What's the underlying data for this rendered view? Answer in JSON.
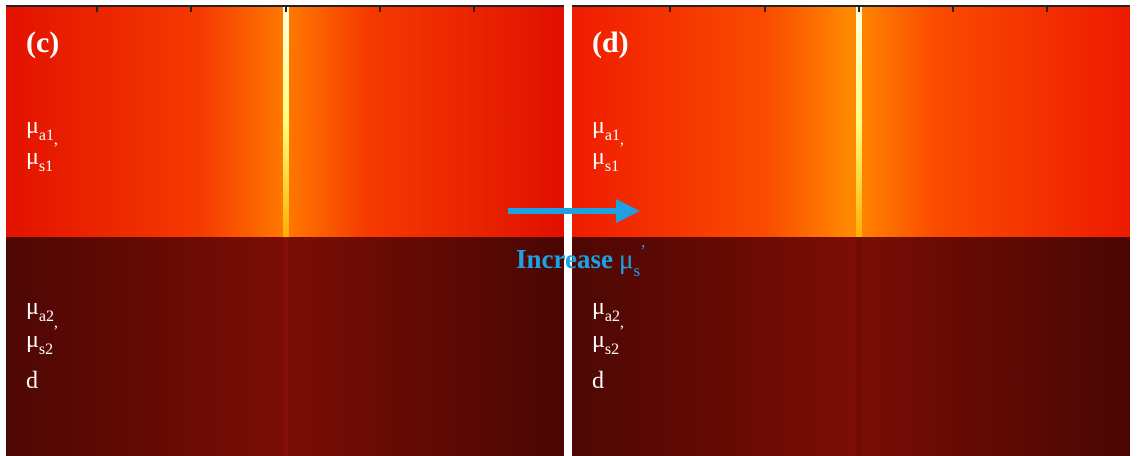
{
  "panels": [
    {
      "label": "(c)",
      "upper_layer": [
        {
          "symbol": "μ",
          "subscript": "a1"
        },
        {
          "symbol": "μ",
          "subscript": "s1",
          "suffix": "’"
        }
      ],
      "lower_layer": [
        {
          "symbol": "μ",
          "subscript": "a2"
        },
        {
          "symbol": "μ",
          "subscript": "s2",
          "suffix": "’"
        },
        {
          "symbol": "d"
        }
      ]
    },
    {
      "label": "(d)",
      "upper_layer": [
        {
          "symbol": "μ",
          "subscript": "a1"
        },
        {
          "symbol": "μ",
          "subscript": "s1",
          "suffix": "’"
        }
      ],
      "lower_layer": [
        {
          "symbol": "μ",
          "subscript": "a2"
        },
        {
          "symbol": "μ",
          "subscript": "s2",
          "suffix": "’"
        },
        {
          "symbol": "d"
        }
      ]
    }
  ],
  "annotation": {
    "text": "Increase",
    "symbol": "μ",
    "subscript": "s",
    "suffix": "’"
  }
}
